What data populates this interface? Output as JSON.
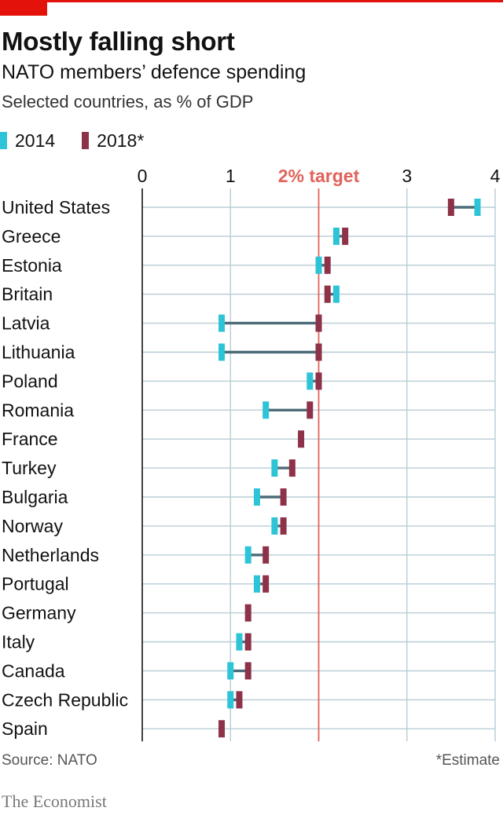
{
  "title": "Mostly falling short",
  "subtitle": "NATO members’ defence spending",
  "note": "Selected countries, as % of GDP",
  "legend": [
    {
      "label": "2014",
      "color": "#2ec4d8"
    },
    {
      "label": "2018*",
      "color": "#8e3249"
    }
  ],
  "source": "Source: NATO",
  "footnote": "*Estimate",
  "brand": "The Economist",
  "chart_data": {
    "type": "dumbbell",
    "title": "Mostly falling short",
    "xlim": [
      0,
      4
    ],
    "x_ticks": [
      0,
      1,
      3,
      4
    ],
    "x_tick_labels": [
      "0",
      "1",
      "3",
      "4"
    ],
    "target": {
      "value": 2,
      "label": "2% target",
      "color": "#e0635b"
    },
    "grid": true,
    "categories": [
      "United States",
      "Greece",
      "Estonia",
      "Britain",
      "Latvia",
      "Lithuania",
      "Poland",
      "Romania",
      "France",
      "Turkey",
      "Bulgaria",
      "Norway",
      "Netherlands",
      "Portugal",
      "Germany",
      "Italy",
      "Canada",
      "Czech Republic",
      "Spain"
    ],
    "series": [
      {
        "name": "2014",
        "color": "#2ec4d8",
        "values": [
          3.8,
          2.2,
          2.0,
          2.2,
          0.9,
          0.9,
          1.9,
          1.4,
          1.8,
          1.5,
          1.3,
          1.5,
          1.2,
          1.3,
          1.2,
          1.1,
          1.0,
          1.0,
          0.9
        ]
      },
      {
        "name": "2018*",
        "color": "#8e3249",
        "values": [
          3.5,
          2.3,
          2.1,
          2.1,
          2.0,
          2.0,
          2.0,
          1.9,
          1.8,
          1.7,
          1.6,
          1.6,
          1.4,
          1.4,
          1.2,
          1.2,
          1.2,
          1.1,
          0.9
        ]
      }
    ],
    "connector_color": "#4d6b78"
  }
}
